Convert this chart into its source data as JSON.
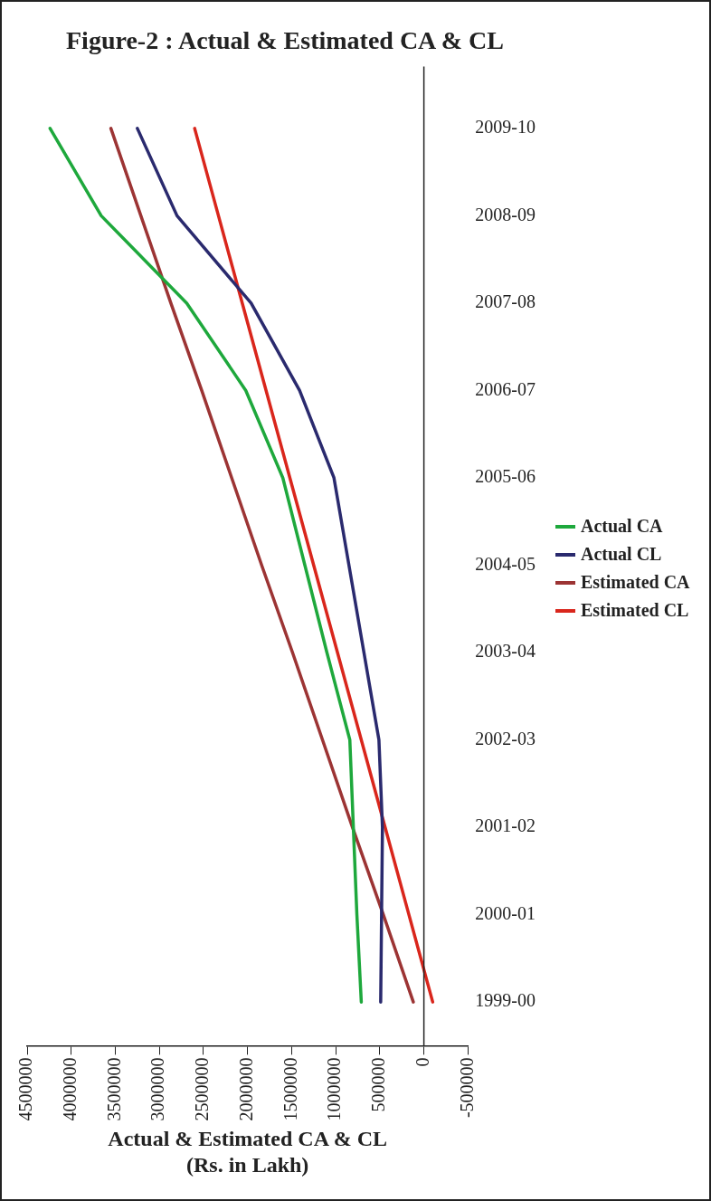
{
  "chart_data": {
    "type": "line",
    "orientation": "horizontal",
    "title": "Figure-2 : Actual & Estimated CA & CL",
    "xlabel": "Actual & Estimated CA & CL\n(Rs. in Lakh)",
    "categories": [
      "2009-10",
      "2008-09",
      "2007-08",
      "2006-07",
      "2005-06",
      "2004-05",
      "2003-04",
      "2002-03",
      "2001-02",
      "2000-01",
      "1999-00"
    ],
    "series": [
      {
        "name": "Actual CA",
        "color": "#1ea83c",
        "values": [
          4240000,
          3660000,
          2690000,
          2020000,
          1600000,
          1350000,
          1100000,
          840000,
          800000,
          760000,
          710000
        ]
      },
      {
        "name": "Actual CL",
        "color": "#2a2a6e",
        "values": [
          3250000,
          2800000,
          1960000,
          1410000,
          1020000,
          850000,
          680000,
          510000,
          470000,
          480000,
          490000
        ]
      },
      {
        "name": "Estimated CA",
        "color": "#9c3434",
        "values": [
          3550000,
          3210000,
          2870000,
          2520000,
          2180000,
          1840000,
          1490000,
          1150000,
          810000,
          460000,
          120000
        ]
      },
      {
        "name": "Estimated CL",
        "color": "#d9261c",
        "values": [
          2600000,
          2330000,
          2060000,
          1790000,
          1520000,
          1250000,
          980000,
          710000,
          440000,
          170000,
          -100000
        ]
      }
    ],
    "xlim": [
      4500000,
      -500000
    ],
    "xticks": [
      4500000,
      4000000,
      3500000,
      3000000,
      2500000,
      2000000,
      1500000,
      1000000,
      500000,
      0,
      -500000
    ],
    "ref_lines": [
      {
        "axis": "x",
        "value": 0,
        "color": "#222222"
      }
    ],
    "grid": false,
    "legend": "right",
    "marker": "none",
    "line_style": "solid"
  }
}
